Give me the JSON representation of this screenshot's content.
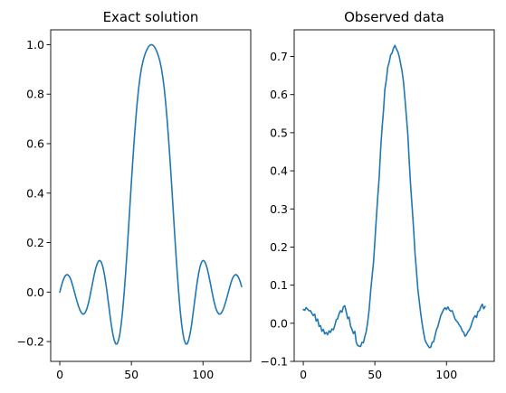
{
  "colors": {
    "line": "#1f77b4",
    "background": "#ffffff"
  },
  "chart_data": [
    {
      "type": "line",
      "title": "Exact solution",
      "xlabel": "",
      "ylabel": "",
      "xlim": [
        -6.35,
        133.35
      ],
      "ylim": [
        -0.28,
        1.06
      ],
      "xticks": [
        0,
        50,
        100
      ],
      "xtick_labels": [
        "0",
        "50",
        "100"
      ],
      "yticks": [
        -0.2,
        0.0,
        0.2,
        0.4,
        0.6,
        0.8,
        1.0
      ],
      "ytick_labels": [
        "−0.2",
        "0.0",
        "0.2",
        "0.4",
        "0.6",
        "0.8",
        "1.0"
      ],
      "grid": false,
      "legend": "none",
      "series": [
        {
          "x": [
            0,
            1,
            2,
            3,
            4,
            5,
            6,
            7,
            8,
            9,
            10,
            11,
            12,
            13,
            14,
            15,
            16,
            17,
            18,
            19,
            20,
            21,
            22,
            23,
            24,
            25,
            26,
            27,
            28,
            29,
            30,
            31,
            32,
            33,
            34,
            35,
            36,
            37,
            38,
            39,
            40,
            41,
            42,
            43,
            44,
            45,
            46,
            47,
            48,
            49,
            50,
            51,
            52,
            53,
            54,
            55,
            56,
            57,
            58,
            59,
            60,
            61,
            62,
            63,
            64,
            65,
            66,
            67,
            68,
            69,
            70,
            71,
            72,
            73,
            74,
            75,
            76,
            77,
            78,
            79,
            80,
            81,
            82,
            83,
            84,
            85,
            86,
            87,
            88,
            89,
            90,
            91,
            92,
            93,
            94,
            95,
            96,
            97,
            98,
            99,
            100,
            101,
            102,
            103,
            104,
            105,
            106,
            107,
            108,
            109,
            110,
            111,
            112,
            113,
            114,
            115,
            116,
            117,
            118,
            119,
            120,
            121,
            122,
            123,
            124,
            125,
            126,
            127
          ],
          "y": [
            0.0,
            0.022,
            0.042,
            0.057,
            0.067,
            0.071,
            0.068,
            0.06,
            0.046,
            0.027,
            0.006,
            -0.016,
            -0.037,
            -0.056,
            -0.072,
            -0.083,
            -0.089,
            -0.088,
            -0.08,
            -0.066,
            -0.045,
            -0.019,
            0.01,
            0.04,
            0.069,
            0.094,
            0.113,
            0.125,
            0.128,
            0.121,
            0.104,
            0.077,
            0.042,
            0.0,
            -0.045,
            -0.09,
            -0.133,
            -0.168,
            -0.194,
            -0.209,
            -0.21,
            -0.196,
            -0.168,
            -0.125,
            -0.069,
            0.0,
            0.079,
            0.165,
            0.256,
            0.35,
            0.443,
            0.533,
            0.617,
            0.694,
            0.762,
            0.82,
            0.866,
            0.903,
            0.931,
            0.952,
            0.969,
            0.982,
            0.992,
            0.998,
            1.0,
            0.998,
            0.992,
            0.982,
            0.969,
            0.952,
            0.931,
            0.903,
            0.866,
            0.82,
            0.762,
            0.694,
            0.617,
            0.533,
            0.443,
            0.35,
            0.256,
            0.165,
            0.079,
            0.0,
            -0.069,
            -0.125,
            -0.168,
            -0.196,
            -0.21,
            -0.209,
            -0.194,
            -0.168,
            -0.133,
            -0.09,
            -0.045,
            0.0,
            0.042,
            0.077,
            0.104,
            0.121,
            0.128,
            0.125,
            0.113,
            0.094,
            0.069,
            0.04,
            0.01,
            -0.019,
            -0.045,
            -0.066,
            -0.08,
            -0.088,
            -0.089,
            -0.083,
            -0.072,
            -0.056,
            -0.037,
            -0.016,
            0.006,
            0.027,
            0.046,
            0.06,
            0.068,
            0.071,
            0.067,
            0.057,
            0.042,
            0.022
          ]
        }
      ]
    },
    {
      "type": "line",
      "title": "Observed data",
      "xlabel": "",
      "ylabel": "",
      "xlim": [
        -6.35,
        133.35
      ],
      "ylim": [
        -0.1,
        0.77
      ],
      "xticks": [
        0,
        50,
        100
      ],
      "xtick_labels": [
        "0",
        "50",
        "100"
      ],
      "yticks": [
        -0.1,
        0.0,
        0.1,
        0.2,
        0.3,
        0.4,
        0.5,
        0.6,
        0.7
      ],
      "ytick_labels": [
        "−0.1",
        "0.0",
        "0.1",
        "0.2",
        "0.3",
        "0.4",
        "0.5",
        "0.6",
        "0.7"
      ],
      "grid": false,
      "legend": "none",
      "series": [
        {
          "x": [
            0,
            1,
            2,
            3,
            4,
            5,
            6,
            7,
            8,
            9,
            10,
            11,
            12,
            13,
            14,
            15,
            16,
            17,
            18,
            19,
            20,
            21,
            22,
            23,
            24,
            25,
            26,
            27,
            28,
            29,
            30,
            31,
            32,
            33,
            34,
            35,
            36,
            37,
            38,
            39,
            40,
            41,
            42,
            43,
            44,
            45,
            46,
            47,
            48,
            49,
            50,
            51,
            52,
            53,
            54,
            55,
            56,
            57,
            58,
            59,
            60,
            61,
            62,
            63,
            64,
            65,
            66,
            67,
            68,
            69,
            70,
            71,
            72,
            73,
            74,
            75,
            76,
            77,
            78,
            79,
            80,
            81,
            82,
            83,
            84,
            85,
            86,
            87,
            88,
            89,
            90,
            91,
            92,
            93,
            94,
            95,
            96,
            97,
            98,
            99,
            100,
            101,
            102,
            103,
            104,
            105,
            106,
            107,
            108,
            109,
            110,
            111,
            112,
            113,
            114,
            115,
            116,
            117,
            118,
            119,
            120,
            121,
            122,
            123,
            124,
            125,
            126,
            127
          ],
          "y": [
            0.036,
            0.034,
            0.041,
            0.037,
            0.033,
            0.033,
            0.026,
            0.02,
            0.024,
            0.006,
            0.011,
            -0.008,
            -0.006,
            -0.021,
            -0.016,
            -0.028,
            -0.024,
            -0.03,
            -0.02,
            -0.024,
            -0.015,
            -0.017,
            -0.006,
            0.009,
            0.012,
            0.025,
            0.033,
            0.029,
            0.043,
            0.046,
            0.03,
            0.012,
            0.016,
            -0.007,
            -0.016,
            -0.027,
            -0.021,
            -0.05,
            -0.058,
            -0.06,
            -0.061,
            -0.05,
            -0.051,
            -0.035,
            -0.021,
            0.004,
            0.036,
            0.082,
            0.121,
            0.158,
            0.214,
            0.276,
            0.331,
            0.383,
            0.455,
            0.511,
            0.557,
            0.615,
            0.638,
            0.672,
            0.685,
            0.704,
            0.709,
            0.722,
            0.729,
            0.72,
            0.713,
            0.7,
            0.681,
            0.661,
            0.633,
            0.589,
            0.543,
            0.496,
            0.424,
            0.36,
            0.306,
            0.25,
            0.185,
            0.139,
            0.09,
            0.058,
            0.026,
            -0.001,
            -0.024,
            -0.044,
            -0.052,
            -0.058,
            -0.064,
            -0.063,
            -0.05,
            -0.049,
            -0.033,
            -0.017,
            -0.009,
            0.006,
            0.02,
            0.028,
            0.036,
            0.041,
            0.036,
            0.043,
            0.035,
            0.032,
            0.033,
            0.022,
            0.011,
            0.006,
            0.002,
            -0.005,
            -0.01,
            -0.02,
            -0.024,
            -0.034,
            -0.03,
            -0.022,
            -0.017,
            -0.009,
            0.004,
            0.014,
            0.02,
            0.015,
            0.031,
            0.033,
            0.043,
            0.05,
            0.038,
            0.044
          ]
        }
      ]
    }
  ]
}
